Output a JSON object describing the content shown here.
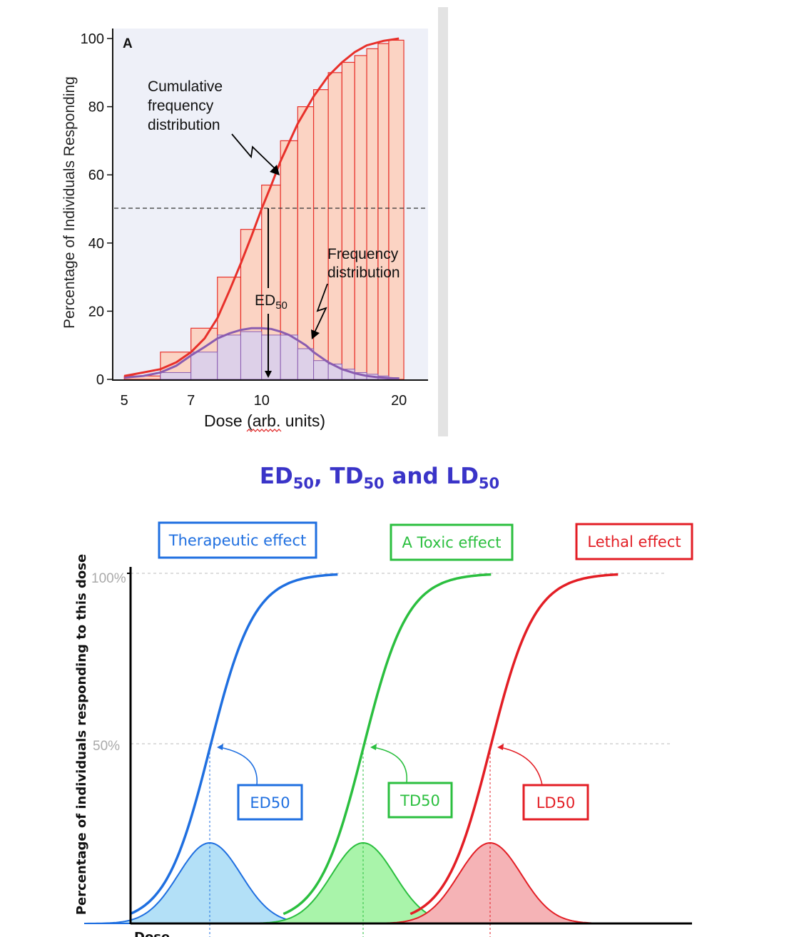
{
  "chart_data": [
    {
      "type": "bar",
      "panel_label": "A",
      "xlabel": "Dose (arb. units)",
      "ylabel": "Percentage of Individuals Responding",
      "x_scale": "log",
      "xlim": [
        4.75,
        23.0
      ],
      "ylim": [
        0,
        100
      ],
      "x_ticks": [
        5,
        7,
        10,
        20
      ],
      "y_ticks": [
        0,
        20,
        40,
        60,
        80,
        100
      ],
      "reference_line_y": 50,
      "ed50_dose": 10,
      "ed50_label": "ED",
      "ed50_sub": "50",
      "annotations": {
        "cumulative": [
          "Cumulative",
          "frequency",
          "distribution"
        ],
        "frequency": [
          "Frequency",
          "distribution"
        ]
      },
      "series": [
        {
          "kind": "cumulative_steps",
          "color": "#e8302a",
          "fill": "#fbd3c3",
          "steps": [
            {
              "x0": 5.0,
              "x1": 6.0,
              "y": 1
            },
            {
              "x0": 6.0,
              "x1": 7.0,
              "y": 8
            },
            {
              "x0": 7.0,
              "x1": 8.0,
              "y": 15
            },
            {
              "x0": 8.0,
              "x1": 9.0,
              "y": 30
            },
            {
              "x0": 9.0,
              "x1": 10.0,
              "y": 44
            },
            {
              "x0": 10.0,
              "x1": 11.0,
              "y": 57
            },
            {
              "x0": 11.0,
              "x1": 12.0,
              "y": 70
            },
            {
              "x0": 12.0,
              "x1": 13.0,
              "y": 80
            },
            {
              "x0": 13.0,
              "x1": 14.0,
              "y": 85
            },
            {
              "x0": 14.0,
              "x1": 15.0,
              "y": 90
            },
            {
              "x0": 15.0,
              "x1": 16.0,
              "y": 93
            },
            {
              "x0": 16.0,
              "x1": 17.0,
              "y": 95
            },
            {
              "x0": 17.0,
              "x1": 18.0,
              "y": 97
            },
            {
              "x0": 18.0,
              "x1": 19.0,
              "y": 98.5
            },
            {
              "x0": 19.0,
              "x1": 20.5,
              "y": 99.5
            }
          ]
        },
        {
          "kind": "frequency_histogram",
          "color": "#8a5cb0",
          "fill": "#ddd0e8",
          "bars": [
            {
              "x0": 6.0,
              "x1": 7.0,
              "y": 2
            },
            {
              "x0": 7.0,
              "x1": 8.0,
              "y": 8
            },
            {
              "x0": 8.0,
              "x1": 9.0,
              "y": 13
            },
            {
              "x0": 9.0,
              "x1": 10.0,
              "y": 14
            },
            {
              "x0": 10.0,
              "x1": 11.0,
              "y": 13
            },
            {
              "x0": 11.0,
              "x1": 12.0,
              "y": 13
            },
            {
              "x0": 12.0,
              "x1": 13.0,
              "y": 9
            },
            {
              "x0": 13.0,
              "x1": 14.0,
              "y": 5.5
            },
            {
              "x0": 14.0,
              "x1": 15.0,
              "y": 4.5
            },
            {
              "x0": 15.0,
              "x1": 16.0,
              "y": 3
            },
            {
              "x0": 16.0,
              "x1": 17.0,
              "y": 2
            },
            {
              "x0": 17.0,
              "x1": 18.0,
              "y": 1.5
            },
            {
              "x0": 18.0,
              "x1": 19.0,
              "y": 1
            },
            {
              "x0": 19.0,
              "x1": 20.0,
              "y": 0.5
            }
          ]
        },
        {
          "kind": "cumulative_curve",
          "color": "#e8302a",
          "points": [
            [
              5.0,
              1
            ],
            [
              5.5,
              2
            ],
            [
              6.0,
              3
            ],
            [
              6.5,
              5
            ],
            [
              7.0,
              8
            ],
            [
              7.5,
              12
            ],
            [
              8.0,
              18
            ],
            [
              8.5,
              26
            ],
            [
              9.0,
              34
            ],
            [
              9.5,
              42
            ],
            [
              10.0,
              50
            ],
            [
              10.5,
              57
            ],
            [
              11.0,
              64
            ],
            [
              12.0,
              75
            ],
            [
              13.0,
              83
            ],
            [
              14.0,
              89
            ],
            [
              15.0,
              93
            ],
            [
              16.0,
              96
            ],
            [
              17.0,
              98
            ],
            [
              18.5,
              99.3
            ],
            [
              20.0,
              100
            ]
          ]
        },
        {
          "kind": "frequency_curve",
          "color": "#8a5cb0",
          "points": [
            [
              5.0,
              0.5
            ],
            [
              5.5,
              1
            ],
            [
              6.0,
              2
            ],
            [
              6.5,
              4
            ],
            [
              7.0,
              7
            ],
            [
              7.5,
              9.5
            ],
            [
              8.0,
              12
            ],
            [
              8.5,
              13.5
            ],
            [
              9.0,
              14.5
            ],
            [
              9.5,
              15
            ],
            [
              10.0,
              15
            ],
            [
              10.5,
              14.8
            ],
            [
              11.0,
              14
            ],
            [
              11.5,
              13
            ],
            [
              12.0,
              11.5
            ],
            [
              12.5,
              10
            ],
            [
              13.0,
              8
            ],
            [
              14.0,
              5
            ],
            [
              15.0,
              3
            ],
            [
              16.0,
              1.8
            ],
            [
              17.0,
              1
            ],
            [
              18.0,
              0.6
            ],
            [
              20.0,
              0.2
            ]
          ]
        }
      ]
    },
    {
      "type": "line",
      "title": {
        "parts": [
          "ED",
          "50",
          ", TD",
          "50",
          " and LD",
          "50"
        ]
      },
      "ylabel": "Percentage of individuals responding to this dose",
      "xlabel": "Dose",
      "y_ticks": [
        "100%",
        "50%"
      ],
      "series": [
        {
          "name": "Therapeutic effect",
          "marker": "ED50",
          "color": "#1f6fe0",
          "fill": "#b3e0f7",
          "midpoint_x": 0
        },
        {
          "name": "A Toxic effect",
          "marker": "TD50",
          "color": "#2bbf3f",
          "fill": "#a9f4aa",
          "midpoint_x": 1
        },
        {
          "name": "Lethal effect",
          "marker": "LD50",
          "color": "#e31e25",
          "fill": "#f5b3b6",
          "midpoint_x": 2
        }
      ]
    }
  ]
}
